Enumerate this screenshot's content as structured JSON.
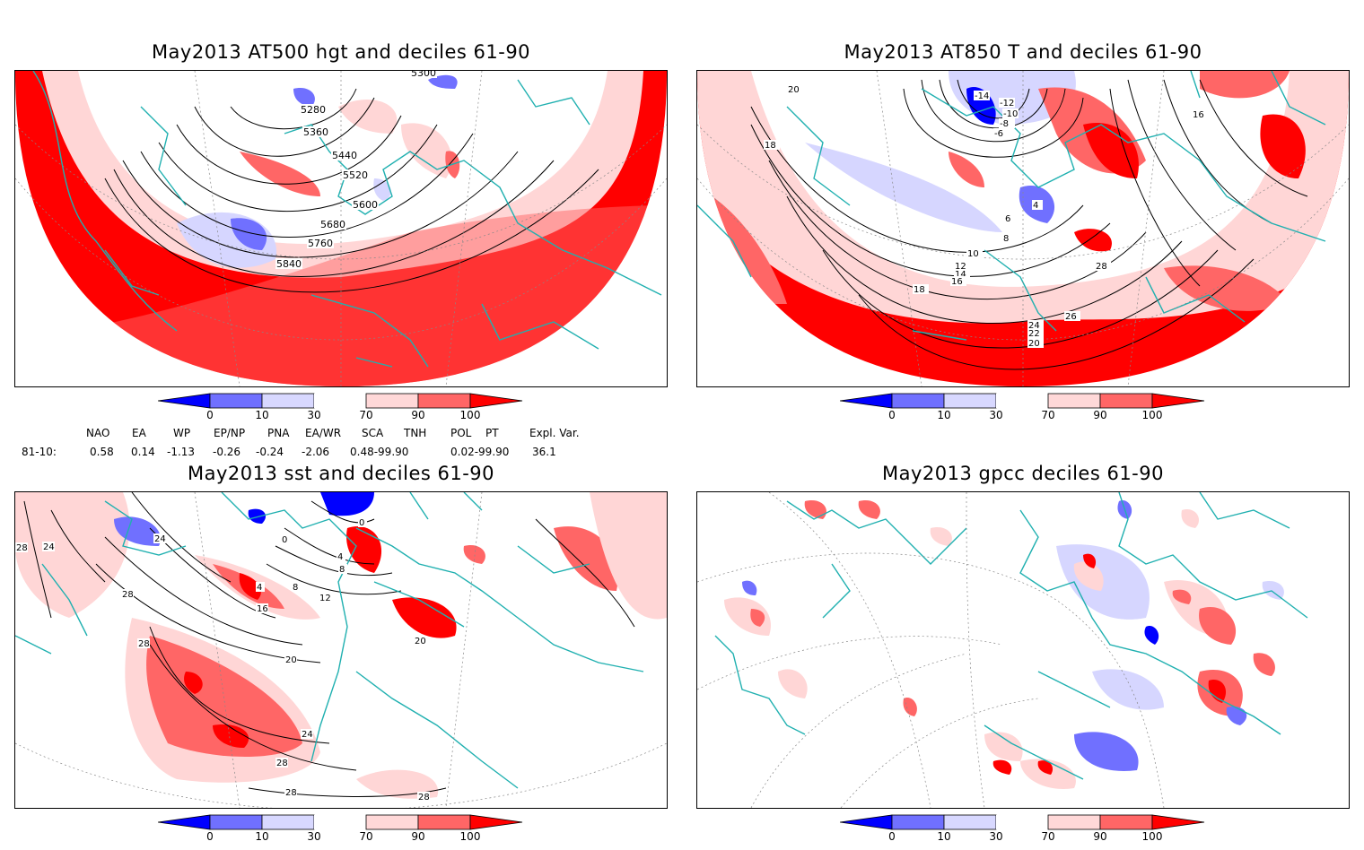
{
  "panels": [
    {
      "title": "May2013 AT500 hgt and deciles 61-90",
      "contour_labels": [
        "5280",
        "5360",
        "5440",
        "5520",
        "5600",
        "5680",
        "5760",
        "5840",
        "5300"
      ]
    },
    {
      "title": "May2013 AT850 T and deciles 61-90",
      "contour_labels": [
        "-14",
        "-12",
        "-10",
        "-8",
        "-6",
        "4",
        "6",
        "8",
        "10",
        "12",
        "14",
        "16",
        "18",
        "20",
        "22",
        "24",
        "26",
        "28",
        "16",
        "18",
        "20"
      ]
    },
    {
      "title": "May2013 sst and deciles 61-90",
      "contour_labels": [
        "24",
        "28",
        "28",
        "24",
        "28",
        "0",
        "4",
        "8",
        "12",
        "16",
        "20",
        "24",
        "28",
        "28",
        "28",
        "4",
        "8",
        "0",
        "20"
      ]
    },
    {
      "title": "May2013 gpcc deciles 61-90",
      "contour_labels": []
    }
  ],
  "colorbar": {
    "ticks": [
      "0",
      "10",
      "30",
      "70",
      "90",
      "100"
    ],
    "colors": [
      "#0000ff",
      "#7070ff",
      "#d8d8ff",
      "#ffffff",
      "#ffd8d8",
      "#ff6666",
      "#ff0000"
    ]
  },
  "indices": {
    "headers": [
      "NAO",
      "EA",
      "WP",
      "EP/NP",
      "PNA",
      "EA/WR",
      "SCA",
      "TNH",
      "POL",
      "PT",
      "Expl. Var."
    ],
    "row_label": "81-10:",
    "values": [
      "0.58",
      "0.14",
      "-1.13",
      "-0.26",
      "-0.24",
      "-2.06",
      "0.48-99.90",
      "0.02-99.90",
      "36.1"
    ]
  },
  "colors": {
    "coast": "#20b0b0",
    "strong_red": "#ff0000",
    "mid_red": "#ff6666",
    "light_red": "#ffd6d6",
    "light_blue": "#d6d6ff",
    "mid_blue": "#7070ff",
    "strong_blue": "#0000ff"
  }
}
